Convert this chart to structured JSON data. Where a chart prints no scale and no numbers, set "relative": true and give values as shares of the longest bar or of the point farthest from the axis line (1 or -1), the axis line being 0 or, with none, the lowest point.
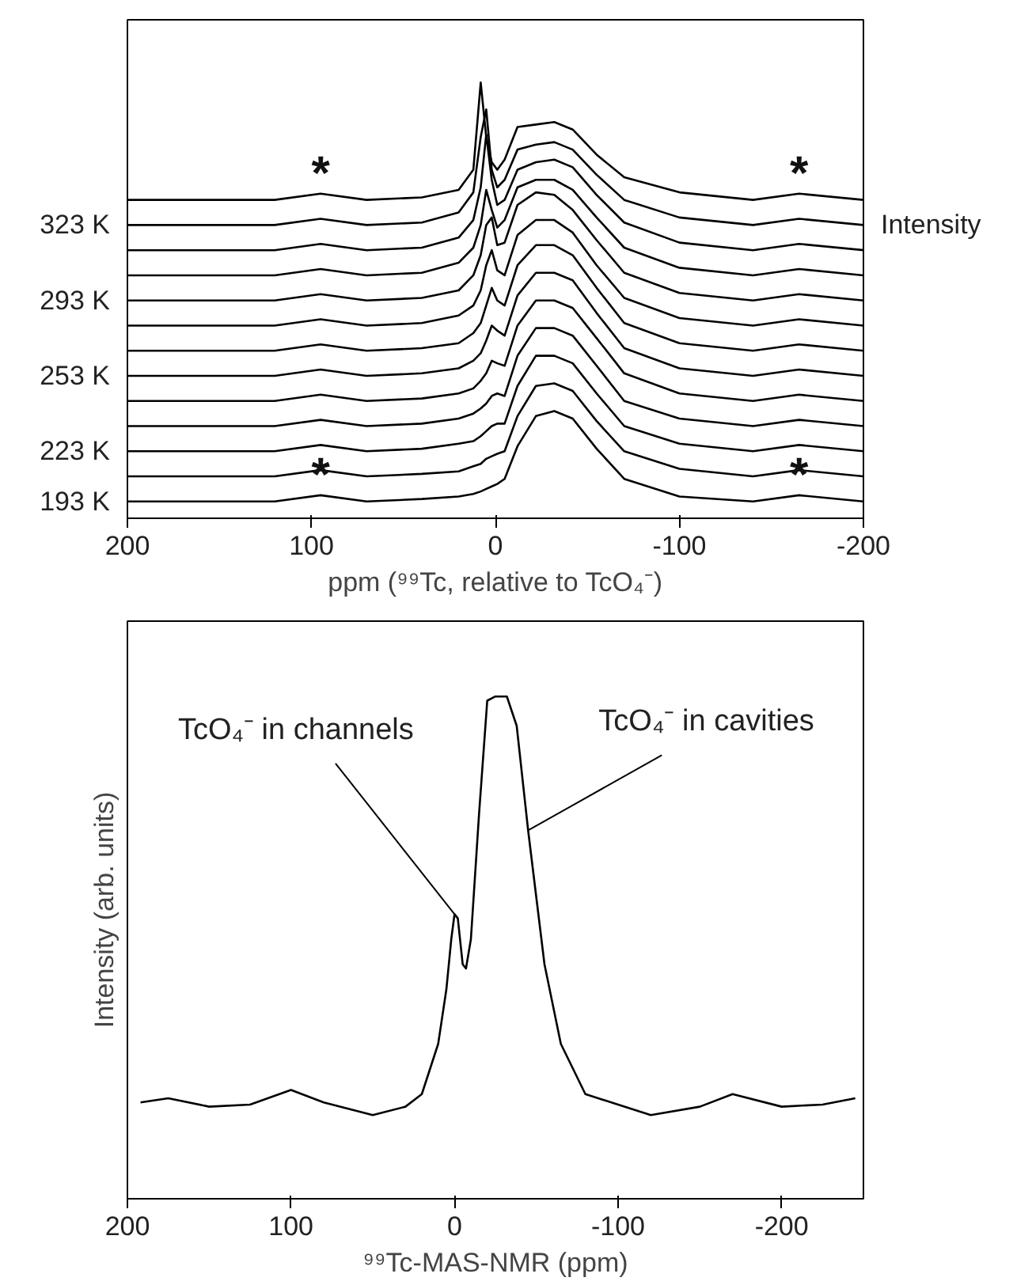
{
  "chart_data": [
    {
      "type": "line",
      "xlabel": "ppm (⁹⁹Tc, relative to TcO₄⁻)",
      "y2label": "Intensity",
      "relative": true,
      "x": [
        200,
        120,
        95,
        70,
        40,
        20,
        12,
        8,
        5,
        2,
        -1,
        -5,
        -12,
        -22,
        -32,
        -42,
        -55,
        -70,
        -100,
        -140,
        -165,
        -200
      ],
      "xlim": [
        200,
        -200
      ],
      "xticks": [
        200,
        100,
        0,
        -100,
        -200
      ],
      "grid": false,
      "marker": "none",
      "line_style": "solid",
      "annotations": [
        {
          "text": "*",
          "x": 95,
          "y": 0.735
        },
        {
          "text": "*",
          "x": -165,
          "y": 0.735
        },
        {
          "text": "*",
          "x": 95,
          "y": 0.015
        },
        {
          "text": "*",
          "x": -165,
          "y": 0.015
        }
      ],
      "series": [
        {
          "color": "#000000",
          "values": [
            0.72,
            0.72,
            0.735,
            0.72,
            0.726,
            0.744,
            0.792,
            1.0,
            0.87,
            0.81,
            0.792,
            0.816,
            0.894,
            0.9,
            0.906,
            0.888,
            0.828,
            0.774,
            0.738,
            0.72,
            0.735,
            0.72
          ]
        },
        {
          "name": "323 K",
          "color": "#000000",
          "values": [
            0.66,
            0.66,
            0.675,
            0.66,
            0.666,
            0.69,
            0.738,
            0.87,
            0.936,
            0.792,
            0.75,
            0.768,
            0.84,
            0.852,
            0.858,
            0.84,
            0.78,
            0.72,
            0.678,
            0.66,
            0.675,
            0.66
          ]
        },
        {
          "color": "#000000",
          "values": [
            0.6,
            0.6,
            0.615,
            0.6,
            0.606,
            0.63,
            0.672,
            0.75,
            0.876,
            0.768,
            0.708,
            0.72,
            0.792,
            0.81,
            0.816,
            0.798,
            0.732,
            0.666,
            0.618,
            0.6,
            0.615,
            0.6
          ]
        },
        {
          "color": "#000000",
          "values": [
            0.54,
            0.54,
            0.555,
            0.54,
            0.546,
            0.57,
            0.606,
            0.66,
            0.744,
            0.696,
            0.654,
            0.672,
            0.75,
            0.768,
            0.768,
            0.744,
            0.678,
            0.606,
            0.558,
            0.54,
            0.555,
            0.54
          ]
        },
        {
          "name": "293 K",
          "color": "#000000",
          "values": [
            0.48,
            0.48,
            0.495,
            0.48,
            0.486,
            0.504,
            0.54,
            0.588,
            0.66,
            0.678,
            0.612,
            0.618,
            0.708,
            0.738,
            0.732,
            0.696,
            0.624,
            0.546,
            0.498,
            0.48,
            0.495,
            0.48
          ]
        },
        {
          "color": "#000000",
          "values": [
            0.42,
            0.42,
            0.435,
            0.42,
            0.426,
            0.444,
            0.468,
            0.504,
            0.564,
            0.6,
            0.552,
            0.54,
            0.636,
            0.672,
            0.672,
            0.642,
            0.564,
            0.486,
            0.438,
            0.42,
            0.435,
            0.42
          ]
        },
        {
          "color": "#000000",
          "values": [
            0.36,
            0.36,
            0.375,
            0.36,
            0.366,
            0.378,
            0.402,
            0.426,
            0.468,
            0.51,
            0.48,
            0.468,
            0.564,
            0.612,
            0.612,
            0.588,
            0.51,
            0.426,
            0.378,
            0.36,
            0.375,
            0.36
          ]
        },
        {
          "name": "253 K",
          "color": "#000000",
          "values": [
            0.3,
            0.3,
            0.315,
            0.3,
            0.306,
            0.318,
            0.336,
            0.354,
            0.384,
            0.42,
            0.408,
            0.396,
            0.492,
            0.546,
            0.546,
            0.528,
            0.45,
            0.366,
            0.318,
            0.3,
            0.315,
            0.3
          ]
        },
        {
          "color": "#000000",
          "values": [
            0.24,
            0.24,
            0.255,
            0.24,
            0.246,
            0.258,
            0.27,
            0.288,
            0.306,
            0.336,
            0.33,
            0.324,
            0.42,
            0.48,
            0.48,
            0.462,
            0.39,
            0.306,
            0.258,
            0.24,
            0.255,
            0.24
          ]
        },
        {
          "color": "#000000",
          "values": [
            0.18,
            0.18,
            0.195,
            0.18,
            0.186,
            0.198,
            0.21,
            0.222,
            0.234,
            0.252,
            0.258,
            0.252,
            0.348,
            0.414,
            0.414,
            0.396,
            0.324,
            0.24,
            0.198,
            0.18,
            0.195,
            0.18
          ]
        },
        {
          "name": "223 K",
          "color": "#000000",
          "values": [
            0.12,
            0.12,
            0.135,
            0.12,
            0.126,
            0.138,
            0.144,
            0.156,
            0.168,
            0.18,
            0.186,
            0.186,
            0.276,
            0.348,
            0.348,
            0.33,
            0.258,
            0.18,
            0.138,
            0.12,
            0.135,
            0.12
          ]
        },
        {
          "color": "#000000",
          "values": [
            0.06,
            0.06,
            0.075,
            0.06,
            0.066,
            0.072,
            0.084,
            0.09,
            0.102,
            0.108,
            0.114,
            0.12,
            0.204,
            0.276,
            0.282,
            0.264,
            0.192,
            0.12,
            0.078,
            0.06,
            0.075,
            0.06
          ]
        },
        {
          "name": "193 K",
          "color": "#000000",
          "values": [
            0,
            0,
            0.015,
            0,
            0.006,
            0.012,
            0.018,
            0.024,
            0.03,
            0.036,
            0.042,
            0.054,
            0.132,
            0.204,
            0.216,
            0.198,
            0.126,
            0.054,
            0.012,
            0,
            0.015,
            0
          ]
        }
      ]
    },
    {
      "type": "line",
      "xlabel": "⁹⁹Tc-MAS-NMR (ppm)",
      "ylabel": "Intensity (arb. units)",
      "relative": true,
      "x": [
        192,
        175,
        150,
        125,
        100,
        80,
        50,
        30,
        20,
        10,
        5,
        2,
        0,
        -2,
        -5,
        -7,
        -10,
        -15,
        -20,
        -25,
        -32,
        -38,
        -45,
        -55,
        -65,
        -80,
        -100,
        -120,
        -150,
        -170,
        -200,
        -225,
        -245
      ],
      "xlim": [
        200,
        -250
      ],
      "xticks": [
        200,
        100,
        0,
        -100,
        -200
      ],
      "grid": false,
      "marker": "none",
      "line_style": "solid",
      "annotations": [
        {
          "text": "TcO₄⁻ in channels",
          "x": 0,
          "y": 0.48
        },
        {
          "text": "TcO₄⁻ in cavities",
          "x": -45,
          "y": 0.68
        }
      ],
      "series": [
        {
          "color": "#000000",
          "values": [
            0.03,
            0.04,
            0.02,
            0.025,
            0.06,
            0.03,
            0.0,
            0.02,
            0.05,
            0.17,
            0.3,
            0.42,
            0.48,
            0.47,
            0.36,
            0.35,
            0.42,
            0.72,
            0.99,
            1.0,
            1.0,
            0.93,
            0.68,
            0.36,
            0.17,
            0.05,
            0.025,
            0.0,
            0.02,
            0.05,
            0.02,
            0.025,
            0.04
          ]
        }
      ]
    }
  ]
}
